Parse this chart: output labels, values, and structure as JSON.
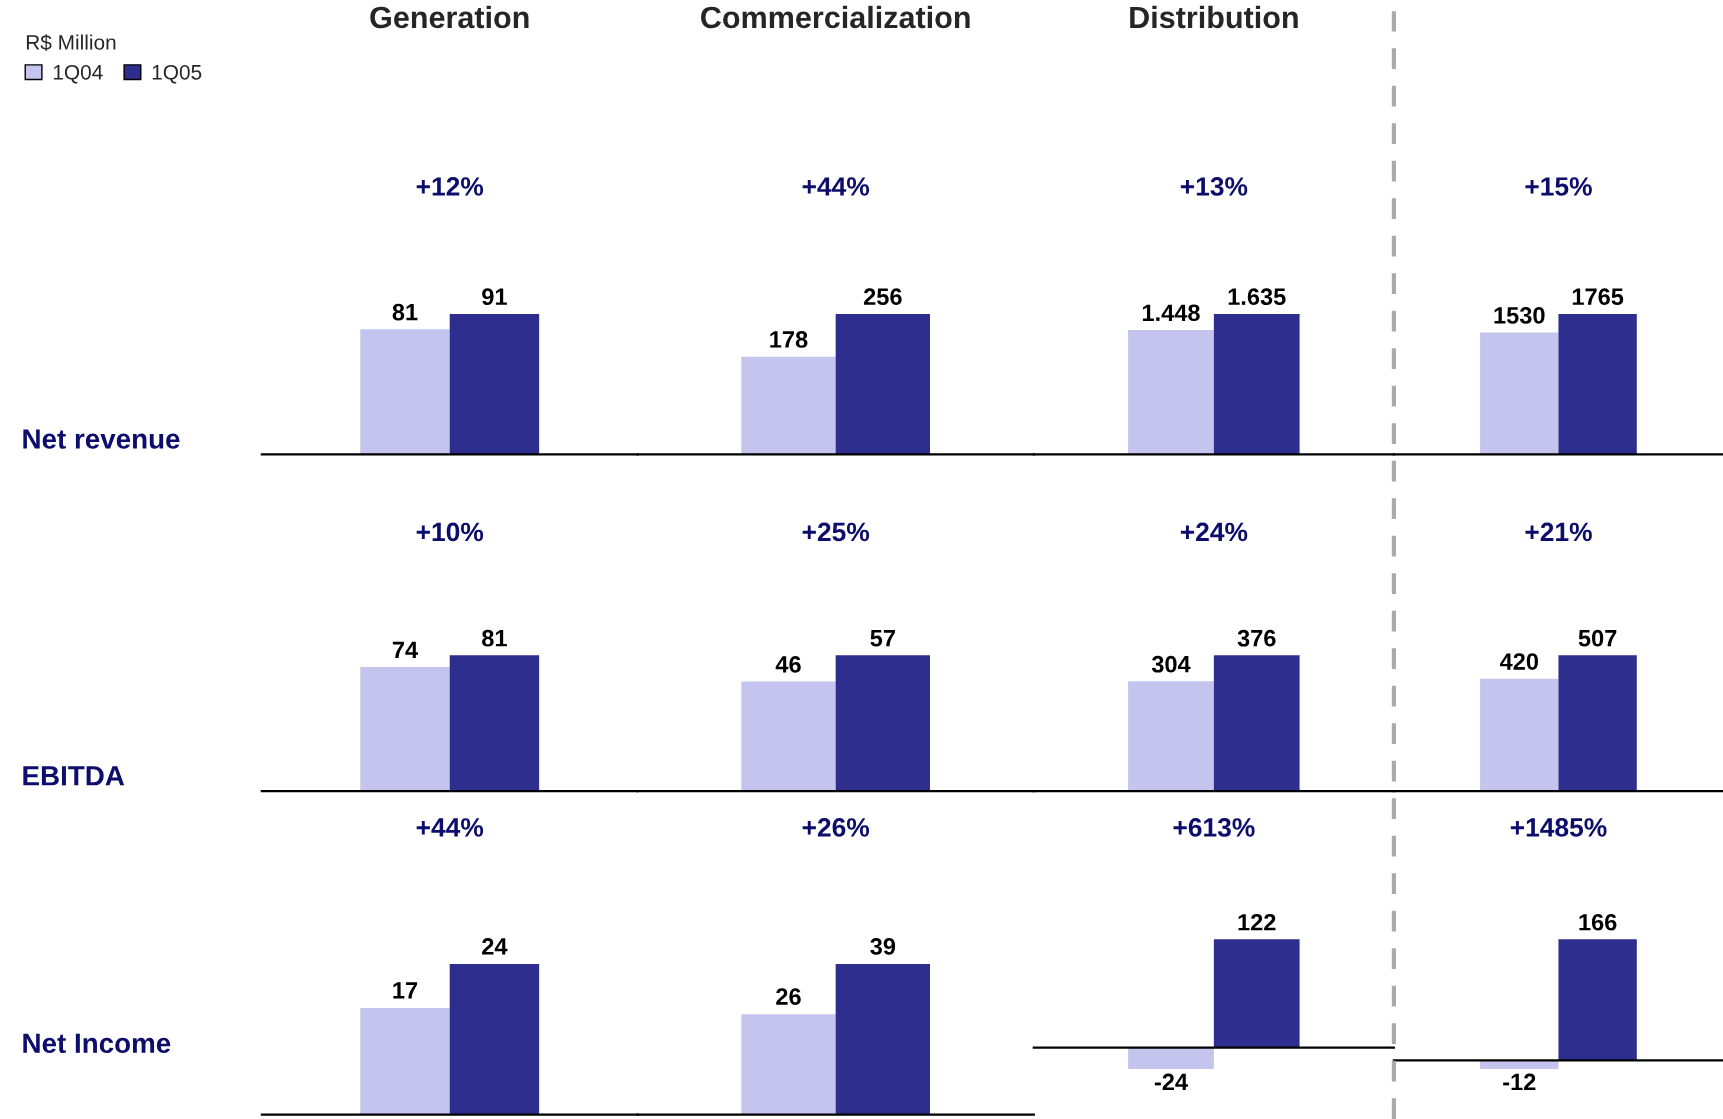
{
  "chart_data": [
    {
      "type": "bar",
      "title": "Generation",
      "ylabel": "Net revenue",
      "legend_title": "R$ Million",
      "legend": "top left",
      "categories": [
        null
      ],
      "data_labels": true,
      "annotations": [
        "+12%"
      ],
      "series": [
        {
          "name": "1Q04",
          "color": "#c4c4ee",
          "values": [
            81
          ]
        },
        {
          "name": "1Q05",
          "color": "#2e2e8e",
          "values": [
            91
          ]
        }
      ]
    },
    {
      "type": "bar",
      "title": "Commercialization",
      "categories": [
        null
      ],
      "data_labels": true,
      "annotations": [
        "+44%"
      ],
      "series": [
        {
          "color": "#c4c4ee",
          "values": [
            178
          ]
        },
        {
          "color": "#2e2e8e",
          "values": [
            256
          ]
        }
      ]
    },
    {
      "type": "bar",
      "title": "Distribution",
      "categories": [
        null
      ],
      "annotations": [
        "+13%"
      ],
      "series": [
        {
          "color": "#c4c4ee",
          "values": [
            1448
          ],
          "value_labels": [
            "1.448"
          ]
        },
        {
          "color": "#2e2e8e",
          "values": [
            1635
          ],
          "value_labels": [
            "1.635"
          ]
        }
      ]
    },
    {
      "type": "bar",
      "categories": [
        null
      ],
      "data_labels": true,
      "annotations": [
        "+15%"
      ],
      "series": [
        {
          "color": "#c4c4ee",
          "values": [
            1530
          ]
        },
        {
          "color": "#2e2e8e",
          "values": [
            1765
          ]
        }
      ]
    },
    {
      "type": "bar",
      "ylabel": "EBITDA",
      "categories": [
        null
      ],
      "data_labels": true,
      "annotations": [
        "+10%"
      ],
      "series": [
        {
          "color": "#c4c4ee",
          "values": [
            74
          ]
        },
        {
          "color": "#2e2e8e",
          "values": [
            81
          ]
        }
      ]
    },
    {
      "type": "bar",
      "categories": [
        null
      ],
      "data_labels": true,
      "annotations": [
        "+25%"
      ],
      "series": [
        {
          "color": "#c4c4ee",
          "values": [
            46
          ]
        },
        {
          "color": "#2e2e8e",
          "values": [
            57
          ]
        }
      ]
    },
    {
      "type": "bar",
      "categories": [
        null
      ],
      "data_labels": true,
      "annotations": [
        "+24%"
      ],
      "series": [
        {
          "color": "#c4c4ee",
          "values": [
            304
          ]
        },
        {
          "color": "#2e2e8e",
          "values": [
            376
          ]
        }
      ]
    },
    {
      "type": "bar",
      "categories": [
        null
      ],
      "data_labels": true,
      "annotations": [
        "+21%"
      ],
      "series": [
        {
          "color": "#c4c4ee",
          "values": [
            420
          ]
        },
        {
          "color": "#2e2e8e",
          "values": [
            507
          ]
        }
      ]
    },
    {
      "type": "bar",
      "ylabel": "Net Income",
      "categories": [
        null
      ],
      "data_labels": true,
      "annotations": [
        "+44%"
      ],
      "series": [
        {
          "color": "#c4c4ee",
          "values": [
            17
          ]
        },
        {
          "color": "#2e2e8e",
          "values": [
            24
          ]
        }
      ]
    },
    {
      "type": "bar",
      "categories": [
        null
      ],
      "data_labels": true,
      "annotations": [
        "+26%"
      ],
      "series": [
        {
          "color": "#c4c4ee",
          "values": [
            26
          ]
        },
        {
          "color": "#2e2e8e",
          "values": [
            39
          ]
        }
      ]
    },
    {
      "type": "bar",
      "categories": [
        null
      ],
      "data_labels": true,
      "annotations": [
        "+613%"
      ],
      "series": [
        {
          "color": "#c4c4ee",
          "values": [
            -24
          ]
        },
        {
          "color": "#2e2e8e",
          "values": [
            122
          ]
        }
      ]
    },
    {
      "type": "bar",
      "categories": [
        null
      ],
      "data_labels": true,
      "annotations": [
        "+1485%"
      ],
      "series": [
        {
          "color": "#c4c4ee",
          "values": [
            -12
          ]
        },
        {
          "color": "#2e2e8e",
          "values": [
            166
          ]
        }
      ]
    }
  ]
}
